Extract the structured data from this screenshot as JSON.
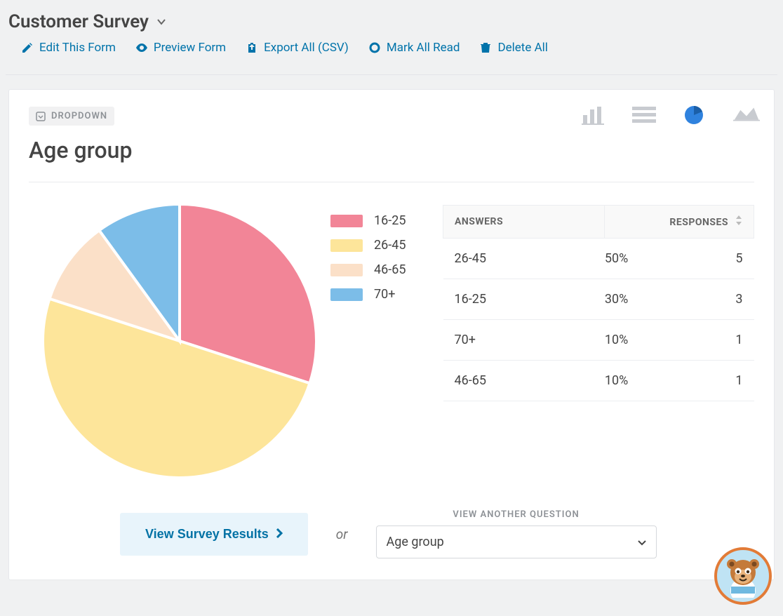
{
  "header": {
    "title": "Customer Survey",
    "toolbar": {
      "edit": "Edit This Form",
      "preview": "Preview Form",
      "export": "Export All (CSV)",
      "mark_read": "Mark All Read",
      "delete_all": "Delete All"
    },
    "link_color": "#0073aa"
  },
  "card": {
    "tag": "DROPDOWN",
    "question": "Age group",
    "chart_types": {
      "bar_color": "#c8cbd0",
      "list_color": "#c8cbd0",
      "pie_color": "#2f82de",
      "area_color": "#c8cbd0",
      "selected": "pie"
    }
  },
  "pie": {
    "type": "pie",
    "radius": 195,
    "stroke": "#ffffff",
    "stroke_width": 4,
    "slices": [
      {
        "label": "16-25",
        "value": 30,
        "color": "#f28597"
      },
      {
        "label": "26-45",
        "value": 50,
        "color": "#fde59a"
      },
      {
        "label": "46-65",
        "value": 10,
        "color": "#fbe0c8"
      },
      {
        "label": "70+",
        "value": 10,
        "color": "#7cbde8"
      }
    ],
    "start_angle_deg": -90
  },
  "legend": [
    {
      "label": "16-25",
      "color": "#f28597"
    },
    {
      "label": "26-45",
      "color": "#fde59a"
    },
    {
      "label": "46-65",
      "color": "#fbe0c8"
    },
    {
      "label": "70+",
      "color": "#7cbde8"
    }
  ],
  "table": {
    "header_answers": "ANSWERS",
    "header_responses": "RESPONSES",
    "rows": [
      {
        "answer": "26-45",
        "pct": "50%",
        "count": "5"
      },
      {
        "answer": "16-25",
        "pct": "30%",
        "count": "3"
      },
      {
        "answer": "70+",
        "pct": "10%",
        "count": "1"
      },
      {
        "answer": "46-65",
        "pct": "10%",
        "count": "1"
      }
    ]
  },
  "footer": {
    "view_results": "View Survey Results",
    "or": "or",
    "another_q_label": "VIEW ANOTHER QUESTION",
    "selected_question": "Age group"
  },
  "colors": {
    "page_bg": "#f0f1f2",
    "card_bg": "#ffffff",
    "border": "#e6e8eb",
    "text": "#444444",
    "muted": "#8e9297",
    "mascot_border": "#e27b37",
    "mascot_bg": "#bfe3f4"
  }
}
